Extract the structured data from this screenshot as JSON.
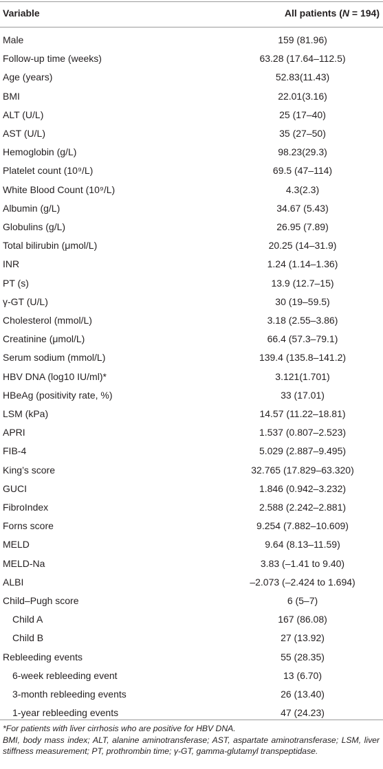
{
  "table": {
    "header": {
      "variable": "Variable",
      "all_patients": [
        "All patients (",
        "N",
        " = 194)"
      ]
    },
    "rows": [
      {
        "label": "Male",
        "value": "159 (81.96)"
      },
      {
        "label": "Follow-up time (weeks)",
        "value": "63.28 (17.64–112.5)"
      },
      {
        "label": "Age (years)",
        "value": "52.83(11.43)"
      },
      {
        "label": "BMI",
        "value": "22.01(3.16)"
      },
      {
        "label": "ALT (U/L)",
        "value": "25 (17–40)"
      },
      {
        "label": "AST (U/L)",
        "value": "35 (27–50)"
      },
      {
        "label": "Hemoglobin (g/L)",
        "value": "98.23(29.3)"
      },
      {
        "label": "Platelet count (10⁹/L)",
        "value": "69.5 (47–114)"
      },
      {
        "label": "White Blood Count (10⁹/L)",
        "value": "4.3(2.3)"
      },
      {
        "label": "Albumin (g/L)",
        "value": "34.67 (5.43)"
      },
      {
        "label": "Globulins (g/L)",
        "value": "26.95 (7.89)"
      },
      {
        "label": "Total bilirubin (μmol/L)",
        "value": "20.25 (14–31.9)"
      },
      {
        "label": "INR",
        "value": "1.24 (1.14–1.36)"
      },
      {
        "label": "PT (s)",
        "value": "13.9 (12.7–15)"
      },
      {
        "label": "γ-GT (U/L)",
        "value": "30 (19–59.5)"
      },
      {
        "label": "Cholesterol (mmol/L)",
        "value": "3.18 (2.55–3.86)"
      },
      {
        "label": "Creatinine (μmol/L)",
        "value": "66.4 (57.3–79.1)"
      },
      {
        "label": "Serum sodium (mmol/L)",
        "value": "139.4 (135.8–141.2)"
      },
      {
        "label": "HBV DNA (log10 IU/ml)*",
        "value": "3.121(1.701)"
      },
      {
        "label": "HBeAg (positivity rate, %)",
        "value": "33 (17.01)"
      },
      {
        "label": "LSM (kPa)",
        "value": "14.57 (11.22–18.81)"
      },
      {
        "label": "APRI",
        "value": "1.537 (0.807–2.523)"
      },
      {
        "label": "FIB-4",
        "value": "5.029 (2.887–9.495)"
      },
      {
        "label": "King’s score",
        "value": "32.765 (17.829–63.320)"
      },
      {
        "label": "GUCI",
        "value": "1.846 (0.942–3.232)"
      },
      {
        "label": "FibroIndex",
        "value": "2.588 (2.242–2.881)"
      },
      {
        "label": "Forns score",
        "value": "9.254 (7.882–10.609)"
      },
      {
        "label": "MELD",
        "value": "9.64 (8.13–11.59)"
      },
      {
        "label": "MELD-Na",
        "value": "3.83 (–1.41 to 9.40)"
      },
      {
        "label": "ALBI",
        "value": "–2.073 (–2.424 to 1.694)"
      },
      {
        "label": "Child–Pugh score",
        "value": "6 (5–7)",
        "subrows": [
          {
            "label": "Child A",
            "value": "167 (86.08)"
          },
          {
            "label": "Child B",
            "value": "27 (13.92)"
          }
        ]
      },
      {
        "label": "Rebleeding events",
        "value": "55 (28.35)",
        "subrows": [
          {
            "label": "6-week rebleeding event",
            "value": "13 (6.70)"
          },
          {
            "label": "3-month rebleeding events",
            "value": "26 (13.40)"
          },
          {
            "label": "1-year rebleeding events",
            "value": "47 (24.23)"
          }
        ]
      }
    ]
  },
  "footnotes": [
    "*For patients with liver cirrhosis who are positive for HBV DNA.",
    "BMI, body mass index; ALT, alanine aminotransferase; AST, aspartate aminotransferase; LSM, liver stiffness measurement; PT, prothrombin time; γ-GT, gamma-glutamyl transpeptidase."
  ]
}
